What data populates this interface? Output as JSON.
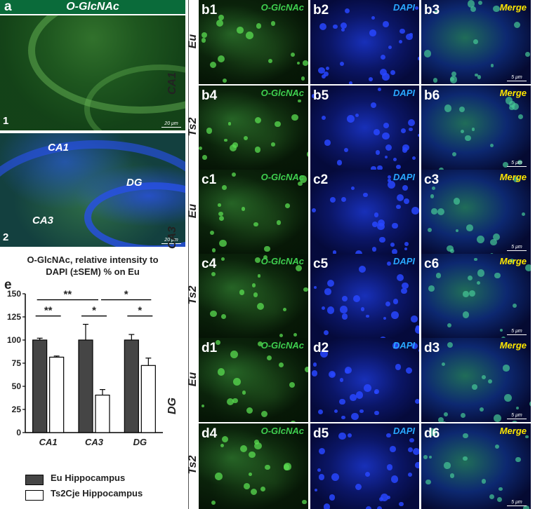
{
  "panel_a": {
    "letter": "a",
    "header": "O-GlcNAc",
    "img1": {
      "number": "1",
      "scale": "20 μm"
    },
    "img2": {
      "number": "2",
      "scale": "20 μm",
      "regions": [
        "CA1",
        "DG",
        "CA3"
      ]
    }
  },
  "regions": [
    "CA1",
    "CA3",
    "DG"
  ],
  "genotypes": [
    "Eu",
    "Ts2"
  ],
  "stains": {
    "o_glcnac": "O-GlcNAc",
    "dapi": "DAPI",
    "merge": "Merge"
  },
  "scale_small": "5 μm",
  "grid_labels": {
    "b": [
      "b1",
      "b2",
      "b3",
      "b4",
      "b5",
      "b6"
    ],
    "c": [
      "c1",
      "c2",
      "c3",
      "c4",
      "c5",
      "c6"
    ],
    "d": [
      "d1",
      "d2",
      "d3",
      "d4",
      "d5",
      "d6"
    ]
  },
  "colors": {
    "green_label": "#3fcf4f",
    "dapi_label": "#29a8ff",
    "merge_label": "#ffe600",
    "header_bg": "#0a6b3a",
    "eu_bar": "#454545",
    "ts_bar": "#ffffff"
  },
  "panel_e": {
    "letter": "e",
    "title_line1": "O-GlcNAc, relative intensity to",
    "title_line2": "DAPI (±SEM) % on Eu",
    "legend": [
      "Eu Hippocampus",
      "Ts2Cje Hippocampus"
    ]
  },
  "chart_data": {
    "type": "bar",
    "categories": [
      "CA1",
      "CA3",
      "DG"
    ],
    "series": [
      {
        "name": "Eu Hippocampus",
        "values": [
          100,
          100,
          100
        ],
        "errors": [
          2,
          17,
          6
        ]
      },
      {
        "name": "Ts2Cje Hippocampus",
        "values": [
          81.5,
          40.5,
          72.5
        ],
        "errors": [
          1.2,
          6,
          8
        ]
      }
    ],
    "ylim": [
      0,
      150
    ],
    "yticks": [
      "0",
      "25",
      "50",
      "75",
      "100",
      "125",
      "150"
    ],
    "significance": [
      {
        "label": "**",
        "between": "CA1 Eu vs CA1 Ts2"
      },
      {
        "label": "*",
        "between": "CA3 Eu vs CA3 Ts2"
      },
      {
        "label": "*",
        "between": "DG Eu vs DG Ts2"
      },
      {
        "label": "**",
        "between": "CA1 Ts2 vs CA3 Ts2"
      },
      {
        "label": "*",
        "between": "CA3 Ts2 vs DG Ts2"
      }
    ],
    "legend_position": "bottom"
  }
}
